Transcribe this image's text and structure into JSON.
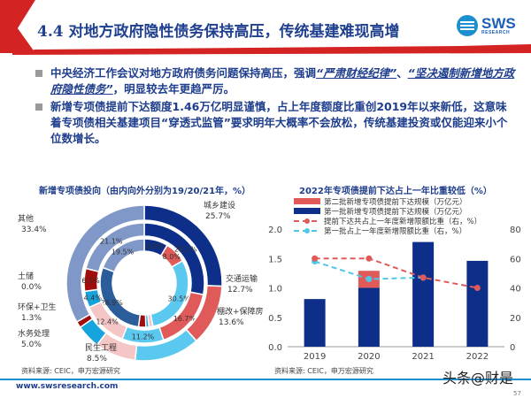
{
  "header": {
    "title": "4.4 对地方政府隐性债务保持高压，传统基建难现高增",
    "logo_text": "SWS",
    "logo_sub": "RESEARCH"
  },
  "bullets": [
    {
      "a": "中央经济工作会议对地方政府债务问题保持高压，强调",
      "b": "“严肃财经纪律”",
      "c": "、",
      "d": "“坚决遏制新增地方政府隐性债务”",
      "e": "，明显较去年更趋严厉。"
    },
    {
      "a": "新增专项债提前下达额度1.46万亿明显谨慎，占上年度额度比重创2019年以来新低，这意味着专项债相关基建项目“穿透式监管”要求明年大概率不会放松，传统基建投资或仅能迎来小个位数增长。"
    }
  ],
  "chart_data": [
    {
      "type": "pie",
      "subtype": "nested-donut",
      "title": "新增专项债投向（由内向外分别为19/20/21年，%）",
      "categories": [
        "城乡建设",
        "交通运输",
        "棚改+保障房",
        "民生工程",
        "水务处理",
        "环保+卫生",
        "土储",
        "其他"
      ],
      "colors": [
        "#0d2f8a",
        "#e05a5a",
        "#5bc8f0",
        "#f5c6c6",
        "#16a4dc",
        "#a00d0d",
        "#2a5d9a",
        "#7f98c8"
      ],
      "series": [
        {
          "name": "19",
          "values": [
            8.8,
            8.0,
            30.5,
            1.5,
            1.1,
            2.7,
            28.9,
            19.5
          ]
        },
        {
          "name": "20",
          "values": [
            28.1,
            16.7,
            11.2,
            12.4,
            4.4,
            6.1,
            0.0,
            21.1
          ]
        },
        {
          "name": "21",
          "values": [
            25.7,
            12.7,
            13.6,
            8.5,
            5.0,
            1.3,
            0.0,
            33.4
          ]
        }
      ],
      "labels": [
        "城乡建设\n25.7%",
        "交通运输\n12.7%",
        "棚改+保障房\n13.6%",
        "民生工程\n8.5%",
        "水务处理\n5.0%",
        "环保+卫生\n1.3%",
        "土储\n0.0%",
        "其他\n33.4%"
      ],
      "source": "资料来源: CEIC，申万宏源研究"
    },
    {
      "type": "bar",
      "title": "2022年专项债提前下达占上一年比重较低（%）",
      "categories": [
        "2019",
        "2020",
        "2021",
        "2022"
      ],
      "series": [
        {
          "name": "第一批新增专项债提前下达规模（万亿元）",
          "kind": "bar",
          "values": [
            0.81,
            1.0,
            1.78,
            1.46
          ],
          "color": "#0d2f8a"
        },
        {
          "name": "第二批新增专项债提前下达规模（万亿元）",
          "kind": "bar-stacked",
          "values": [
            0,
            0.29,
            0,
            0
          ],
          "color": "#e05a5a"
        },
        {
          "name": "提前下达共占上一年度新增限额比重（右，%）",
          "kind": "line-dashed",
          "axis": "right",
          "values": [
            60,
            60,
            47,
            40
          ],
          "color": "#e05a5a"
        },
        {
          "name": "第一批占上一年度新增限额比重（右，%）",
          "kind": "line-dashed",
          "axis": "right",
          "values": [
            58,
            46,
            47,
            null
          ],
          "color": "#4fc8e8"
        }
      ],
      "ylim": [
        0,
        2.0
      ],
      "yticks": [
        "0.0",
        "0.5",
        "1.0",
        "1.5",
        "2.0"
      ],
      "y2lim": [
        0,
        80
      ],
      "y2ticks": [
        "0",
        "20",
        "40",
        "60",
        "80"
      ],
      "legend": "top",
      "source": "资料来源: CEIC，申万宏源研究"
    }
  ],
  "footer": {
    "url": "www.swsresearch.com",
    "watermark": "头条@财是",
    "page": "57"
  }
}
